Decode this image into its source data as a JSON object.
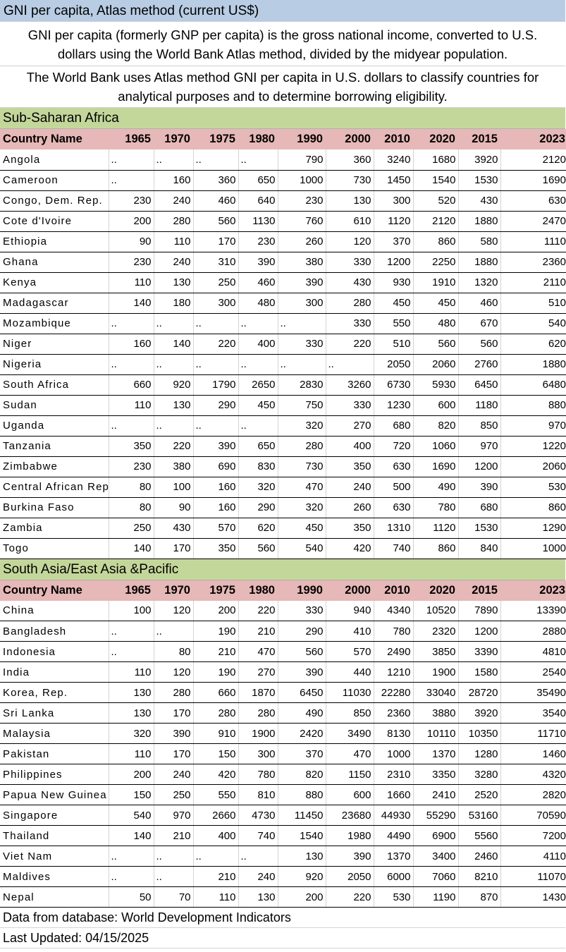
{
  "title": "GNI per capita, Atlas method (current US$)",
  "description_1": [
    "GNI per capita (formerly GNP per capita) is the gross national income, converted to U.S.",
    "dollars using the World Bank Atlas method, divided by the midyear population."
  ],
  "description_2": [
    "The World Bank uses Atlas method GNI per capita in U.S. dollars to classify countries for",
    "analytical purposes and to determine borrowing eligibility."
  ],
  "columns": [
    "Country Name",
    "1965",
    "1970",
    "1975",
    "1980",
    "1990",
    "2000",
    "2010",
    "2020",
    "2015",
    "2023"
  ],
  "sections": [
    {
      "name": "Sub-Saharan Africa",
      "rows": [
        [
          "Angola",
          "..",
          "..",
          "..",
          "..",
          "790",
          "360",
          "3240",
          "1680",
          "3920",
          "2120"
        ],
        [
          "Cameroon",
          "..",
          "160",
          "360",
          "650",
          "1000",
          "730",
          "1450",
          "1540",
          "1530",
          "1690"
        ],
        [
          "Congo, Dem. Rep.",
          "230",
          "240",
          "460",
          "640",
          "230",
          "130",
          "300",
          "520",
          "430",
          "630"
        ],
        [
          "Cote d'Ivoire",
          "200",
          "280",
          "560",
          "1130",
          "760",
          "610",
          "1120",
          "2120",
          "1880",
          "2470"
        ],
        [
          "Ethiopia",
          "90",
          "110",
          "170",
          "230",
          "260",
          "120",
          "370",
          "860",
          "580",
          "1110"
        ],
        [
          "Ghana",
          "230",
          "240",
          "310",
          "390",
          "380",
          "330",
          "1200",
          "2250",
          "1880",
          "2360"
        ],
        [
          "Kenya",
          "110",
          "130",
          "250",
          "460",
          "390",
          "430",
          "930",
          "1910",
          "1320",
          "2110"
        ],
        [
          "Madagascar",
          "140",
          "180",
          "300",
          "480",
          "300",
          "280",
          "450",
          "450",
          "460",
          "510"
        ],
        [
          "Mozambique",
          "..",
          "..",
          "..",
          "..",
          "..",
          "330",
          "550",
          "480",
          "670",
          "540"
        ],
        [
          "Niger",
          "160",
          "140",
          "220",
          "400",
          "330",
          "220",
          "510",
          "560",
          "560",
          "620"
        ],
        [
          "Nigeria",
          "..",
          "..",
          "..",
          "..",
          "..",
          "..",
          "2050",
          "2060",
          "2760",
          "1880"
        ],
        [
          "South Africa",
          "660",
          "920",
          "1790",
          "2650",
          "2830",
          "3260",
          "6730",
          "5930",
          "6450",
          "6480"
        ],
        [
          "Sudan",
          "110",
          "130",
          "290",
          "450",
          "750",
          "330",
          "1230",
          "600",
          "1180",
          "880"
        ],
        [
          "Uganda",
          "..",
          "..",
          "..",
          "..",
          "320",
          "270",
          "680",
          "820",
          "850",
          "970"
        ],
        [
          "Tanzania",
          "350",
          "220",
          "390",
          "650",
          "280",
          "400",
          "720",
          "1060",
          "970",
          "1220"
        ],
        [
          "Zimbabwe",
          "230",
          "380",
          "690",
          "830",
          "730",
          "350",
          "630",
          "1690",
          "1200",
          "2060"
        ],
        [
          "Central African Rep",
          "80",
          "100",
          "160",
          "320",
          "470",
          "240",
          "500",
          "490",
          "390",
          "530"
        ],
        [
          "Burkina Faso",
          "80",
          "90",
          "160",
          "290",
          "320",
          "260",
          "630",
          "780",
          "680",
          "860"
        ],
        [
          "Zambia",
          "250",
          "430",
          "570",
          "620",
          "450",
          "350",
          "1310",
          "1120",
          "1530",
          "1290"
        ],
        [
          "Togo",
          "140",
          "170",
          "350",
          "560",
          "540",
          "420",
          "740",
          "860",
          "840",
          "1000"
        ]
      ]
    },
    {
      "name": "South Asia/East Asia &Pacific",
      "rows": [
        [
          "China",
          "100",
          "120",
          "200",
          "220",
          "330",
          "940",
          "4340",
          "10520",
          "7890",
          "13390"
        ],
        [
          "Bangladesh",
          "..",
          "..",
          "190",
          "210",
          "290",
          "410",
          "780",
          "2320",
          "1200",
          "2880"
        ],
        [
          "Indonesia",
          "..",
          "80",
          "210",
          "470",
          "560",
          "570",
          "2490",
          "3850",
          "3390",
          "4810"
        ],
        [
          "India",
          "110",
          "120",
          "190",
          "270",
          "390",
          "440",
          "1210",
          "1900",
          "1580",
          "2540"
        ],
        [
          "Korea, Rep.",
          "130",
          "280",
          "660",
          "1870",
          "6450",
          "11030",
          "22280",
          "33040",
          "28720",
          "35490"
        ],
        [
          "Sri Lanka",
          "130",
          "170",
          "280",
          "280",
          "490",
          "850",
          "2360",
          "3880",
          "3920",
          "3540"
        ],
        [
          "Malaysia",
          "320",
          "390",
          "910",
          "1900",
          "2420",
          "3490",
          "8130",
          "10110",
          "10350",
          "11710"
        ],
        [
          "Pakistan",
          "110",
          "170",
          "150",
          "300",
          "370",
          "470",
          "1000",
          "1370",
          "1280",
          "1460"
        ],
        [
          "Philippines",
          "200",
          "240",
          "420",
          "780",
          "820",
          "1150",
          "2310",
          "3350",
          "3280",
          "4320"
        ],
        [
          "Papua New Guinea",
          "150",
          "250",
          "550",
          "810",
          "880",
          "600",
          "1660",
          "2410",
          "2520",
          "2820"
        ],
        [
          "Singapore",
          "540",
          "970",
          "2660",
          "4730",
          "11450",
          "23680",
          "44930",
          "55290",
          "53160",
          "70590"
        ],
        [
          "Thailand",
          "140",
          "210",
          "400",
          "740",
          "1540",
          "1980",
          "4490",
          "6900",
          "5560",
          "7200"
        ],
        [
          "Viet Nam",
          "..",
          "..",
          "..",
          "..",
          "130",
          "390",
          "1370",
          "3400",
          "2460",
          "4110"
        ],
        [
          "Maldives",
          "..",
          "..",
          "210",
          "240",
          "920",
          "2050",
          "6000",
          "7060",
          "8210",
          "11070"
        ],
        [
          "Nepal",
          "50",
          "70",
          "110",
          "130",
          "200",
          "220",
          "530",
          "1190",
          "870",
          "1430"
        ]
      ]
    }
  ],
  "footer": {
    "source": "Data from database: World Development Indicators",
    "updated": "Last Updated: 04/15/2025"
  }
}
